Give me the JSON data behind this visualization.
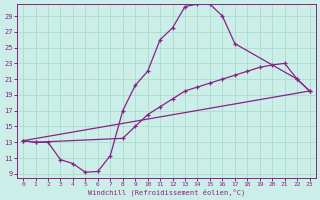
{
  "xlabel": "Windchill (Refroidissement éolien,°C)",
  "background_color": "#cceee8",
  "grid_color": "#aaddcc",
  "line_color": "#882288",
  "xlim": [
    -0.5,
    23.5
  ],
  "ylim": [
    8.5,
    30.5
  ],
  "yticks": [
    9,
    11,
    13,
    15,
    17,
    19,
    21,
    23,
    25,
    27,
    29
  ],
  "xticks": [
    0,
    1,
    2,
    3,
    4,
    5,
    6,
    7,
    8,
    9,
    10,
    11,
    12,
    13,
    14,
    15,
    16,
    17,
    18,
    19,
    20,
    21,
    22,
    23
  ],
  "curve1_x": [
    0,
    1,
    2,
    3,
    4,
    5,
    6,
    7,
    8,
    9,
    10,
    11,
    12,
    13,
    14,
    15,
    16,
    17,
    22,
    23
  ],
  "curve1_y": [
    13.2,
    13.0,
    13.0,
    10.8,
    10.3,
    9.2,
    9.3,
    11.3,
    17.0,
    20.2,
    22.0,
    26.0,
    27.5,
    30.2,
    30.5,
    30.5,
    29.0,
    25.5,
    21.0,
    19.5
  ],
  "curve2_x": [
    0,
    1,
    8,
    9,
    10,
    11,
    12,
    13,
    14,
    15,
    16,
    17,
    18,
    19,
    20,
    21,
    22,
    23
  ],
  "curve2_y": [
    13.2,
    13.0,
    13.5,
    15.0,
    16.5,
    17.5,
    18.5,
    19.5,
    20.0,
    20.5,
    21.0,
    21.5,
    22.0,
    22.5,
    22.8,
    23.0,
    21.0,
    19.5
  ],
  "curve3_x": [
    0,
    23
  ],
  "curve3_y": [
    13.2,
    19.5
  ]
}
